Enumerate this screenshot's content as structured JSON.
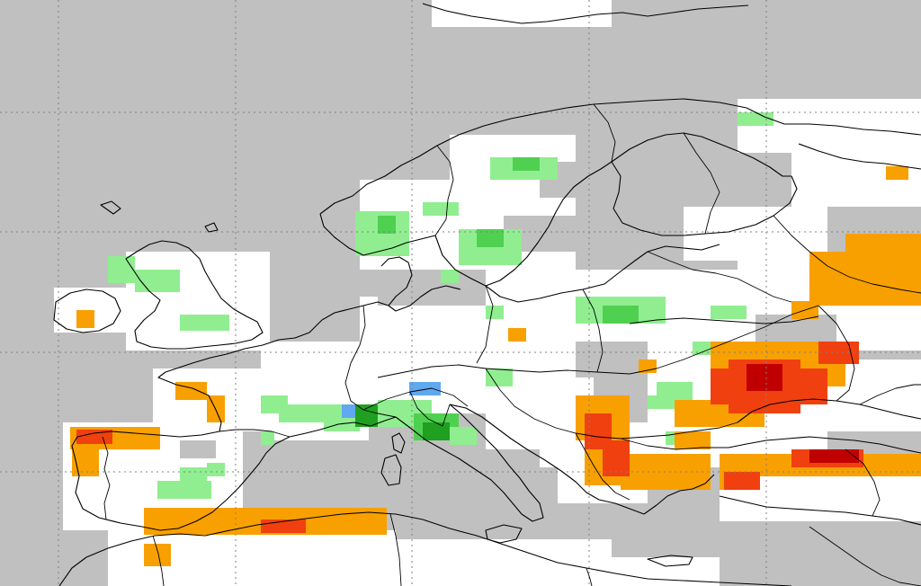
{
  "map": {
    "colors": {
      "ocean": "#c0c0c0",
      "no_data": "#c0c0c0",
      "neutral": "#ffffff",
      "wet_light": "#90ee90",
      "wet_mid": "#50d050",
      "wet_strong": "#20a020",
      "blue": "#60a8f0",
      "dry_orange": "#f8a000",
      "dry_red": "#f04010",
      "dry_dark": "#c00000",
      "coastline": "#000000",
      "graticule": "#808080"
    }
  }
}
